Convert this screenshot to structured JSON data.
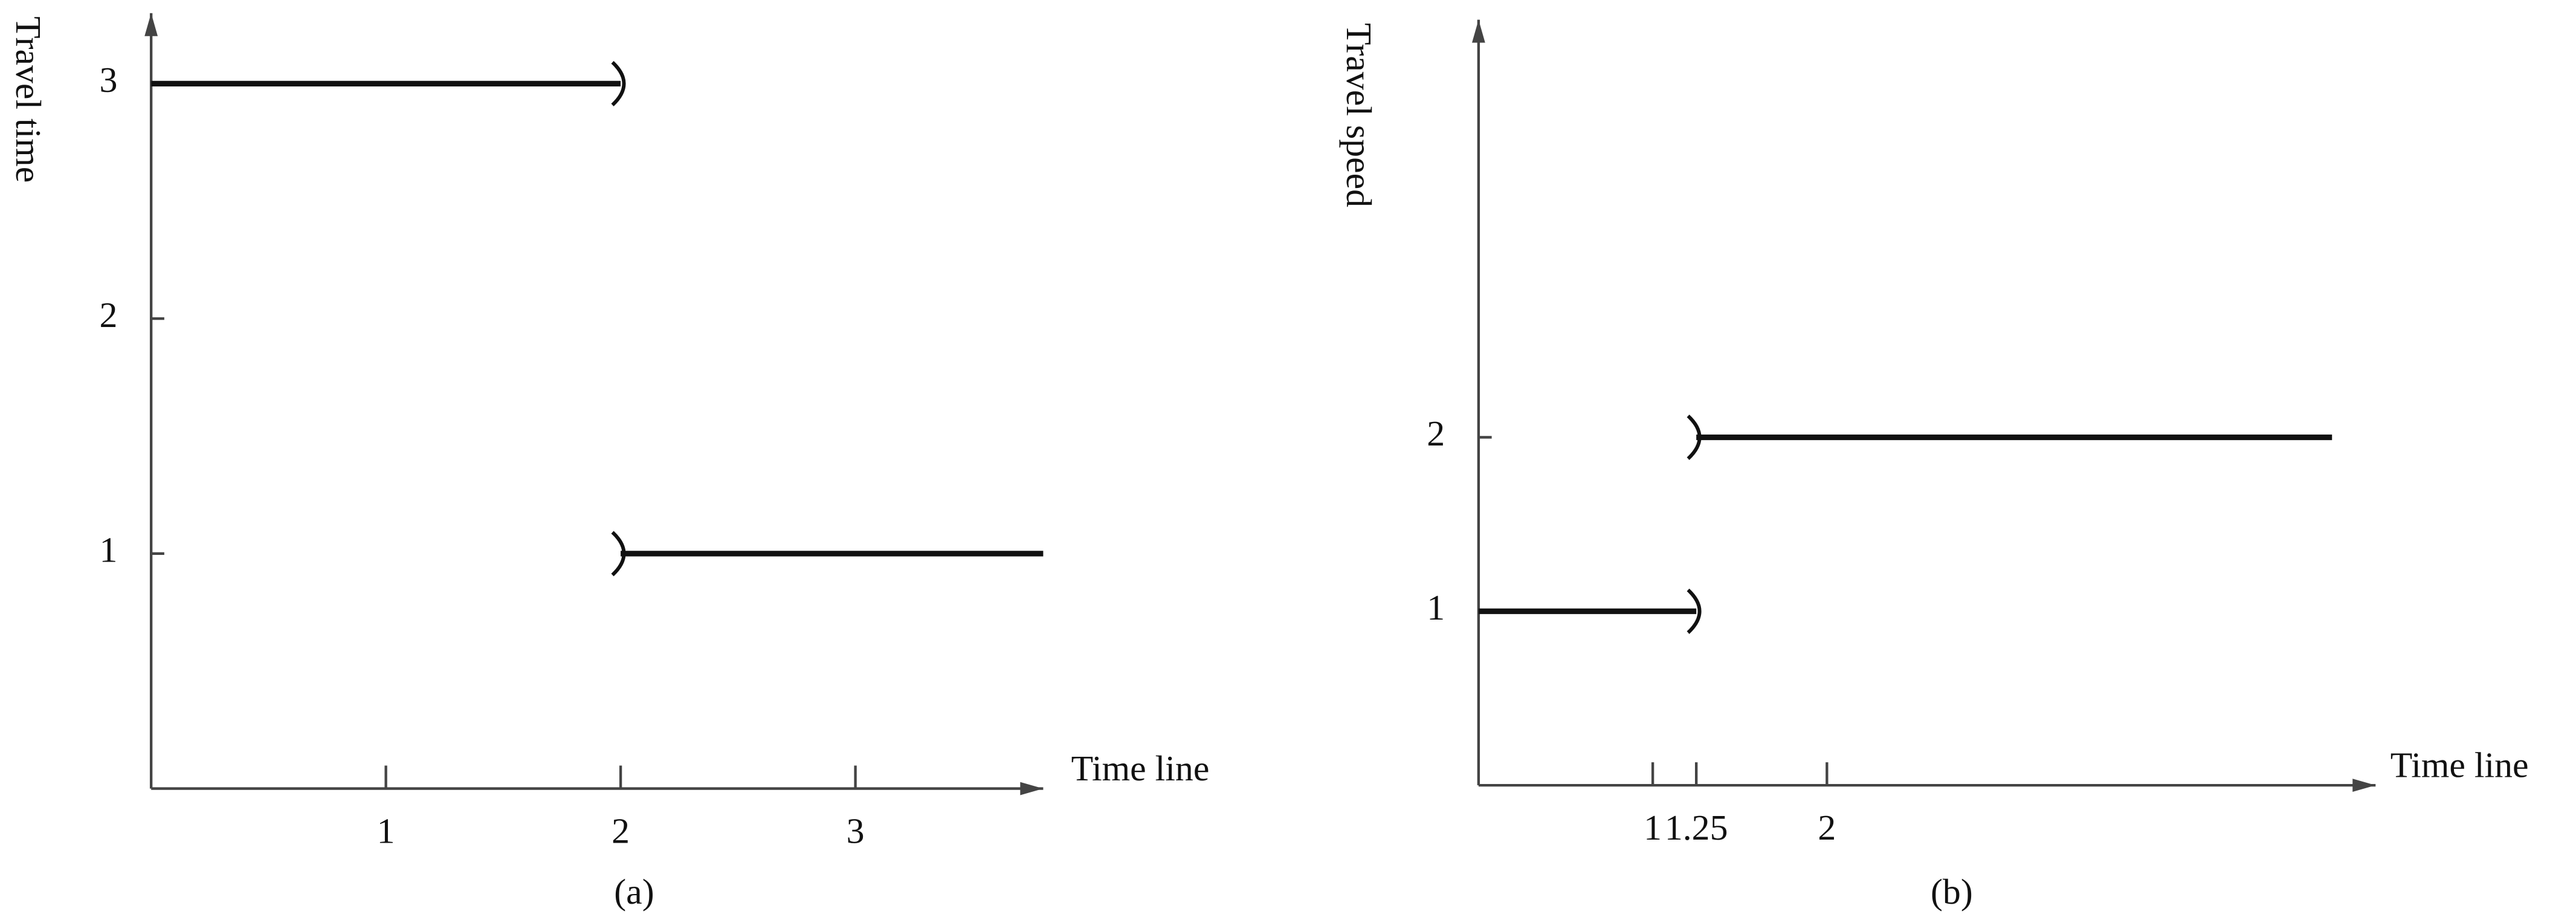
{
  "chart_data": [
    {
      "type": "step",
      "ylabel": "Travel time",
      "xlabel": "Time line",
      "caption": "(a)",
      "series": [
        {
          "color": "#111111",
          "x": [
            0,
            2
          ],
          "values": [
            3,
            3
          ]
        },
        {
          "color": "#111111",
          "x": [
            2,
            3.8
          ],
          "values": [
            1,
            1
          ]
        }
      ],
      "xlim": [
        0,
        3.8
      ],
      "xticks": [
        1,
        2,
        3
      ],
      "ylim": [
        0,
        3.3
      ],
      "yticks": [
        1,
        2,
        3
      ]
    },
    {
      "type": "step",
      "ylabel": "Travel speed",
      "xlabel": "Time line",
      "caption": "(b)",
      "series": [
        {
          "color": "#111111",
          "x": [
            0,
            1.25
          ],
          "values": [
            1,
            1
          ]
        },
        {
          "color": "#111111",
          "x": [
            1.25,
            4.9
          ],
          "values": [
            2,
            2
          ]
        }
      ],
      "xlim": [
        0,
        5.15
      ],
      "xticks": [
        1,
        1.25,
        2
      ],
      "ylim": [
        0,
        4.4
      ],
      "yticks": [
        1,
        2
      ]
    }
  ]
}
